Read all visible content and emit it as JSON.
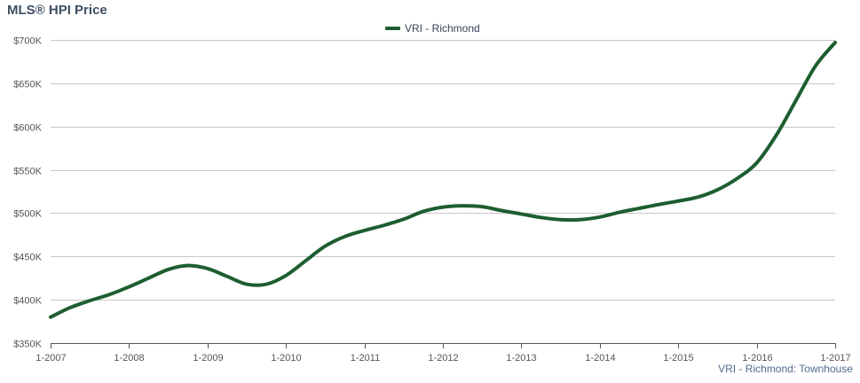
{
  "chart_data": {
    "type": "line",
    "title": "MLS® HPI Price",
    "xlabel": "",
    "ylabel": "",
    "x_ticks": [
      "1-2007",
      "1-2008",
      "1-2009",
      "1-2010",
      "1-2011",
      "1-2012",
      "1-2013",
      "1-2014",
      "1-2015",
      "1-2016",
      "1-2017"
    ],
    "y_ticks": [
      350000,
      400000,
      450000,
      500000,
      550000,
      600000,
      650000,
      700000
    ],
    "y_tick_labels": [
      "$350K",
      "$400K",
      "$450K",
      "$500K",
      "$550K",
      "$600K",
      "$650K",
      "$700K"
    ],
    "ylim": [
      350000,
      700000
    ],
    "xlim": [
      2007.0,
      2017.0
    ],
    "grid": true,
    "legend_position": "top-center",
    "series": [
      {
        "name": "VRI - Richmond",
        "color": "#1d5e30",
        "x": [
          2007.0,
          2007.25,
          2007.5,
          2007.75,
          2008.0,
          2008.25,
          2008.5,
          2008.75,
          2009.0,
          2009.25,
          2009.5,
          2009.75,
          2010.0,
          2010.25,
          2010.5,
          2010.75,
          2011.0,
          2011.25,
          2011.5,
          2011.75,
          2012.0,
          2012.25,
          2012.5,
          2012.75,
          2013.0,
          2013.25,
          2013.5,
          2013.75,
          2014.0,
          2014.25,
          2014.5,
          2014.75,
          2015.0,
          2015.25,
          2015.5,
          2015.75,
          2016.0,
          2016.25,
          2016.5,
          2016.75,
          2017.0
        ],
        "y": [
          380000,
          391000,
          399000,
          406000,
          415000,
          425000,
          435000,
          439500,
          436000,
          427000,
          418000,
          418000,
          428000,
          445000,
          462000,
          473000,
          480000,
          486000,
          493000,
          502000,
          507000,
          508500,
          507500,
          503000,
          499000,
          495000,
          492500,
          492500,
          495500,
          501000,
          505500,
          510000,
          514000,
          518500,
          527000,
          540000,
          558000,
          590000,
          630000,
          670000,
          697000
        ]
      }
    ],
    "source_note": "VRI - Richmond: Townhouse"
  }
}
